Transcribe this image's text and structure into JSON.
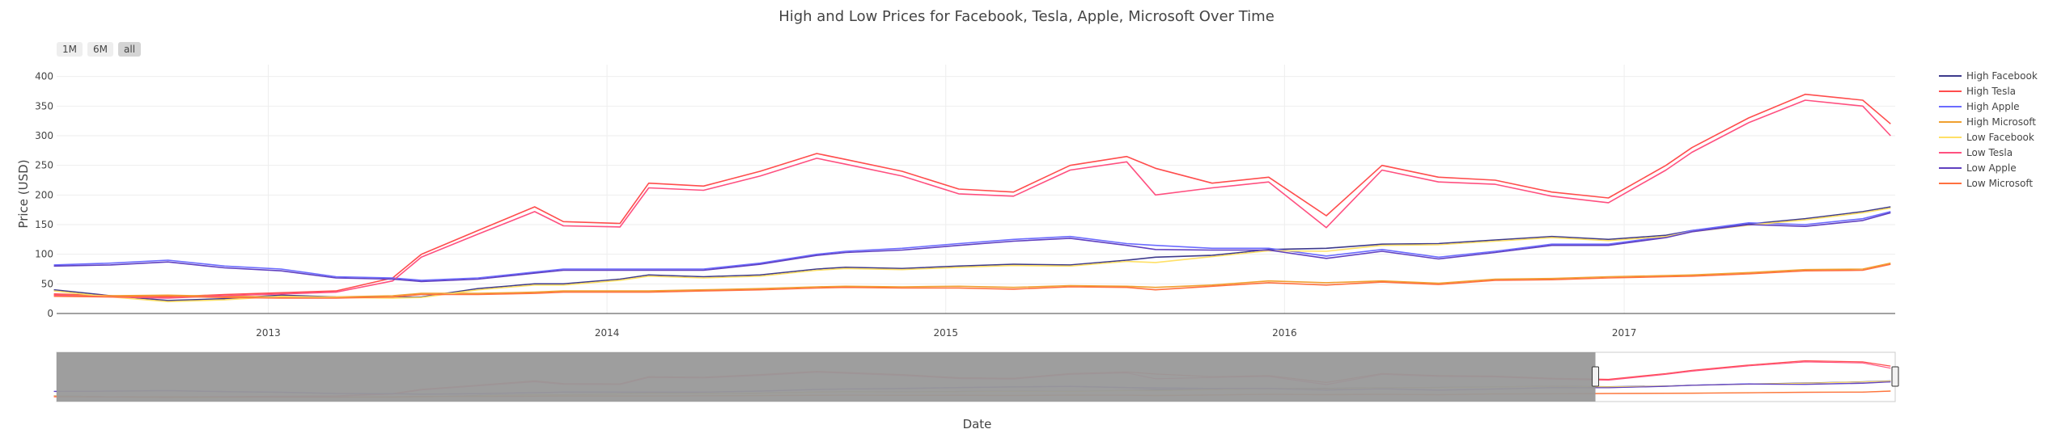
{
  "chart_data": {
    "type": "line",
    "title": "High and Low Prices for Facebook, Tesla, Apple, Microsoft Over Time",
    "xlabel": "Date",
    "ylabel": "Price (USD)",
    "ylim": [
      0,
      420
    ],
    "xlim": [
      "2012-05-18",
      "2017-10-20"
    ],
    "x_ticks": [
      "2013",
      "2014",
      "2015",
      "2016",
      "2017"
    ],
    "x_tick_dates": [
      "2013-01-01",
      "2014-01-01",
      "2015-01-01",
      "2016-01-01",
      "2017-01-01"
    ],
    "y_ticks": [
      0,
      50,
      100,
      150,
      200,
      250,
      300,
      350,
      400
    ],
    "grid": true,
    "legend_position": "right",
    "range_buttons": [
      "1M",
      "6M",
      "all"
    ],
    "range_slider": {
      "selected_end": "2016-12-01"
    },
    "series_dates": [
      "2012-05",
      "2012-07",
      "2012-09",
      "2012-11",
      "2013-01",
      "2013-03",
      "2013-05",
      "2013-06",
      "2013-08",
      "2013-10",
      "2013-11",
      "2014-01",
      "2014-02",
      "2014-04",
      "2014-06",
      "2014-08",
      "2014-09",
      "2014-11",
      "2015-01",
      "2015-03",
      "2015-05",
      "2015-07",
      "2015-08",
      "2015-10",
      "2015-12",
      "2016-02",
      "2016-04",
      "2016-06",
      "2016-08",
      "2016-10",
      "2016-12",
      "2017-02",
      "2017-03",
      "2017-05",
      "2017-07",
      "2017-09",
      "2017-10"
    ],
    "series": [
      {
        "name": "High Facebook",
        "color": "#3d3a8c",
        "values": [
          40,
          30,
          22,
          25,
          31,
          28,
          27,
          28,
          42,
          50,
          50,
          58,
          65,
          62,
          65,
          75,
          78,
          76,
          80,
          83,
          82,
          90,
          95,
          98,
          108,
          110,
          117,
          118,
          124,
          130,
          125,
          132,
          140,
          151,
          160,
          172,
          180
        ]
      },
      {
        "name": "High Tesla",
        "color": "#ff4d4d",
        "values": [
          33,
          30,
          28,
          32,
          35,
          38,
          60,
          100,
          140,
          180,
          155,
          152,
          220,
          215,
          240,
          270,
          260,
          240,
          210,
          205,
          250,
          265,
          245,
          220,
          230,
          165,
          250,
          230,
          225,
          205,
          195,
          250,
          280,
          330,
          370,
          360,
          320
        ]
      },
      {
        "name": "High Apple",
        "color": "#6b6bff",
        "values": [
          82,
          85,
          90,
          80,
          75,
          62,
          60,
          56,
          60,
          70,
          75,
          75,
          75,
          75,
          85,
          100,
          105,
          110,
          118,
          125,
          130,
          118,
          115,
          110,
          110,
          97,
          108,
          95,
          105,
          117,
          117,
          130,
          140,
          153,
          150,
          160,
          172
        ]
      },
      {
        "name": "High Microsoft",
        "color": "#f0a030",
        "values": [
          31,
          30,
          31,
          29,
          28,
          28,
          30,
          34,
          34,
          36,
          38,
          38,
          38,
          40,
          42,
          45,
          46,
          45,
          46,
          44,
          47,
          46,
          44,
          48,
          55,
          52,
          55,
          51,
          58,
          59,
          62,
          64,
          65,
          69,
          74,
          75,
          85
        ]
      },
      {
        "name": "Low Facebook",
        "color": "#ffe066",
        "values": [
          38,
          28,
          20,
          23,
          29,
          27,
          26,
          27,
          40,
          48,
          48,
          56,
          63,
          60,
          63,
          73,
          76,
          74,
          78,
          81,
          80,
          88,
          86,
          96,
          106,
          105,
          115,
          116,
          122,
          128,
          123,
          130,
          138,
          149,
          158,
          170,
          178
        ]
      },
      {
        "name": "Low Tesla",
        "color": "#ff5080",
        "values": [
          31,
          28,
          26,
          30,
          33,
          36,
          55,
          95,
          134,
          172,
          148,
          146,
          212,
          208,
          232,
          262,
          252,
          232,
          202,
          198,
          242,
          256,
          200,
          212,
          222,
          145,
          242,
          222,
          218,
          198,
          187,
          242,
          272,
          322,
          360,
          350,
          300
        ]
      },
      {
        "name": "Low Apple",
        "color": "#6040c0",
        "values": [
          80,
          82,
          87,
          77,
          72,
          60,
          58,
          54,
          58,
          68,
          73,
          73,
          73,
          73,
          83,
          98,
          103,
          107,
          115,
          122,
          127,
          115,
          108,
          107,
          107,
          93,
          105,
          92,
          103,
          115,
          115,
          128,
          138,
          150,
          147,
          157,
          170
        ]
      },
      {
        "name": "Low Microsoft",
        "color": "#ff7040",
        "values": [
          29,
          28,
          29,
          27,
          26,
          26,
          28,
          32,
          32,
          34,
          36,
          36,
          36,
          38,
          40,
          43,
          44,
          43,
          43,
          41,
          45,
          44,
          40,
          46,
          52,
          48,
          53,
          49,
          56,
          57,
          60,
          62,
          63,
          67,
          72,
          73,
          83
        ]
      }
    ]
  }
}
